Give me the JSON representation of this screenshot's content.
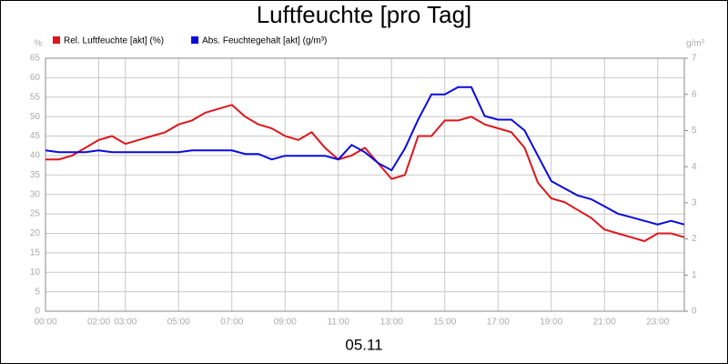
{
  "chart_data": {
    "type": "line",
    "title": "Luftfeuchte [pro Tag]",
    "xlabel": "05.11",
    "ylabel": "%",
    "y2label": "g/m³",
    "x": [
      0,
      0.5,
      1,
      1.5,
      2,
      2.5,
      3,
      3.5,
      4,
      4.5,
      5,
      5.5,
      6,
      6.5,
      7,
      7.5,
      8,
      8.5,
      9,
      9.5,
      10,
      10.5,
      11,
      11.5,
      12,
      12.5,
      13,
      13.5,
      14,
      14.5,
      15,
      15.5,
      16,
      16.5,
      17,
      17.5,
      18,
      18.5,
      19,
      19.5,
      20,
      20.5,
      21,
      21.5,
      22,
      22.5,
      23,
      23.5,
      24
    ],
    "series": [
      {
        "name": "Rel. Luftfeuchte [akt] (%)",
        "color": "#e0151b",
        "axis": "y",
        "values": [
          39,
          39,
          40,
          42,
          44,
          45,
          43,
          44,
          45,
          46,
          48,
          49,
          51,
          52,
          53,
          50,
          48,
          47,
          45,
          44,
          46,
          42,
          39,
          40,
          42,
          38,
          34,
          35,
          45,
          45,
          49,
          49,
          50,
          48,
          47,
          46,
          42,
          33,
          29,
          28,
          26,
          24,
          21,
          20,
          19,
          18,
          20,
          20,
          19
        ]
      },
      {
        "name": "Abs. Feuchtegehalt [akt] (g/m³)",
        "color": "#0a0ae0",
        "axis": "y2",
        "values": [
          4.45,
          4.4,
          4.4,
          4.4,
          4.45,
          4.4,
          4.4,
          4.4,
          4.4,
          4.4,
          4.4,
          4.45,
          4.45,
          4.45,
          4.45,
          4.35,
          4.35,
          4.2,
          4.3,
          4.3,
          4.3,
          4.3,
          4.2,
          4.6,
          4.4,
          4.1,
          3.9,
          4.5,
          5.3,
          6.0,
          6.0,
          6.2,
          6.2,
          5.4,
          5.3,
          5.3,
          5.0,
          4.3,
          3.6,
          3.4,
          3.2,
          3.1,
          2.9,
          2.7,
          2.6,
          2.5,
          2.4,
          2.5,
          2.4
        ]
      }
    ],
    "xlim": [
      0,
      24
    ],
    "xticks": [
      {
        "value": 0,
        "label": "00:00"
      },
      {
        "value": 2,
        "label": "02:00"
      },
      {
        "value": 3,
        "label": "03:00"
      },
      {
        "value": 5,
        "label": "05:00"
      },
      {
        "value": 7,
        "label": "07:00"
      },
      {
        "value": 9,
        "label": "09:00"
      },
      {
        "value": 11,
        "label": "11:00"
      },
      {
        "value": 13,
        "label": "13:00"
      },
      {
        "value": 15,
        "label": "15:00"
      },
      {
        "value": 17,
        "label": "17:00"
      },
      {
        "value": 19,
        "label": "19:00"
      },
      {
        "value": 21,
        "label": "21:00"
      },
      {
        "value": 23,
        "label": "23:00"
      }
    ],
    "ylim": [
      0,
      65
    ],
    "yticks": [
      0,
      5,
      10,
      15,
      20,
      25,
      30,
      35,
      40,
      45,
      50,
      55,
      60,
      65
    ],
    "y2lim": [
      0,
      7
    ],
    "y2ticks": [
      0,
      1,
      2,
      3,
      4,
      5,
      6,
      7
    ],
    "grid": true,
    "legend": "top-left"
  }
}
